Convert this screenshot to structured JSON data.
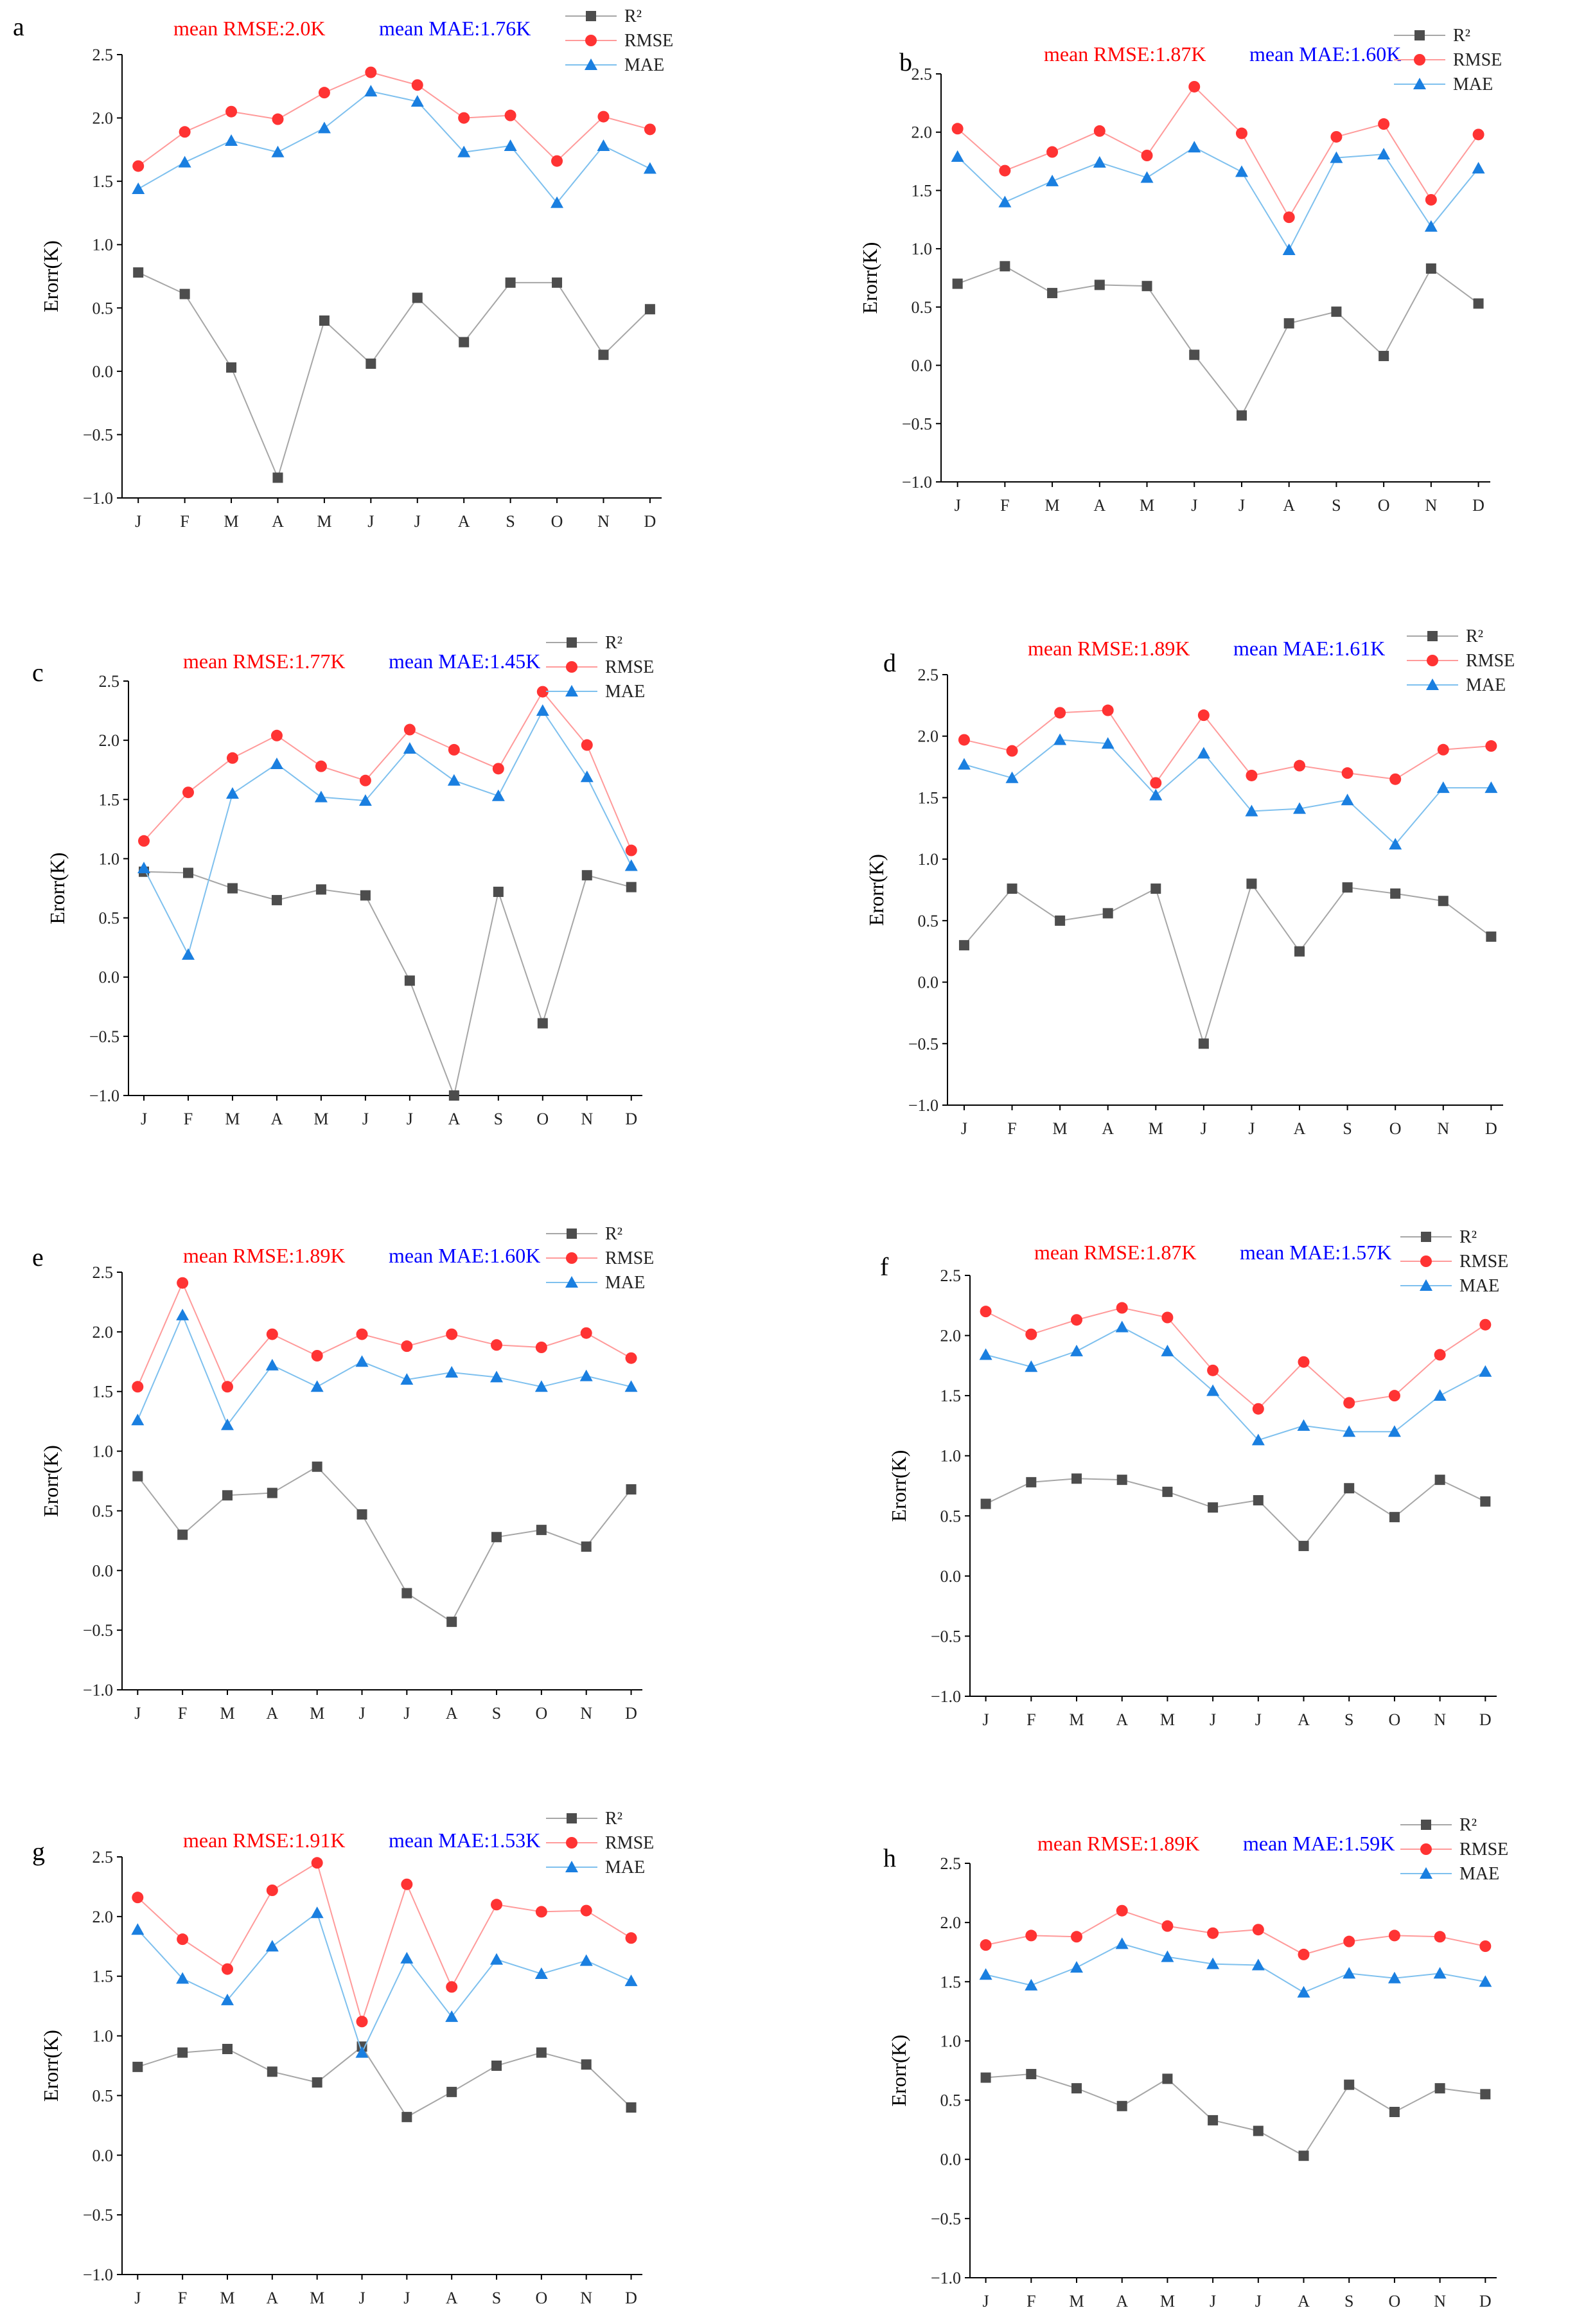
{
  "figure": {
    "colors": {
      "r2": "#4d4d4d",
      "r2_line": "#a6a6a6",
      "rmse": "#ff3333",
      "rmse_line": "#ff9a9a",
      "mae": "#1a7fe0",
      "mae_line": "#7ec0ee",
      "rmse_text": "#ff0000",
      "mae_text": "#0000ff",
      "axis": "#000000"
    }
  },
  "chart_data": [
    {
      "panel": "a",
      "type": "line",
      "summary_rmse": "mean RMSE:2.0K",
      "summary_mae": "mean MAE:1.76K",
      "ylabel": "Erorr(K)",
      "ylim": [
        -1.0,
        2.5
      ],
      "yticks": [
        "-1.0",
        "-0.5",
        "0.0",
        "0.5",
        "1.0",
        "1.5",
        "2.0",
        "2.5"
      ],
      "categories": [
        "J",
        "F",
        "M",
        "A",
        "M",
        "J",
        "J",
        "A",
        "S",
        "O",
        "N",
        "D"
      ],
      "series": [
        {
          "name": "R²",
          "key": "r2",
          "values": [
            0.78,
            0.61,
            0.03,
            -0.84,
            0.4,
            0.06,
            0.58,
            0.23,
            0.7,
            0.7,
            0.13,
            0.49
          ]
        },
        {
          "name": "RMSE",
          "key": "rmse",
          "values": [
            1.62,
            1.89,
            2.05,
            1.99,
            2.2,
            2.36,
            2.26,
            2.0,
            2.02,
            1.66,
            2.01,
            1.91
          ]
        },
        {
          "name": "MAE",
          "key": "mae",
          "values": [
            1.44,
            1.65,
            1.82,
            1.73,
            1.92,
            2.21,
            2.13,
            1.73,
            1.78,
            1.33,
            1.78,
            1.6
          ]
        }
      ]
    },
    {
      "panel": "b",
      "type": "line",
      "summary_rmse": "mean RMSE:1.87K",
      "summary_mae": "mean MAE:1.60K",
      "ylabel": "Erorr(K)",
      "ylim": [
        -1.0,
        2.5
      ],
      "yticks": [
        "-1.0",
        "-0.5",
        "0.0",
        "0.5",
        "1.0",
        "1.5",
        "2.0",
        "2.5"
      ],
      "categories": [
        "J",
        "F",
        "M",
        "A",
        "M",
        "J",
        "J",
        "A",
        "S",
        "O",
        "N",
        "D"
      ],
      "series": [
        {
          "name": "R²",
          "key": "r2",
          "values": [
            0.7,
            0.85,
            0.62,
            0.69,
            0.68,
            0.09,
            -0.43,
            0.36,
            0.46,
            0.08,
            0.83,
            0.53
          ]
        },
        {
          "name": "RMSE",
          "key": "rmse",
          "values": [
            2.03,
            1.67,
            1.83,
            2.01,
            1.8,
            2.39,
            1.99,
            1.27,
            1.96,
            2.07,
            1.42,
            1.98
          ]
        },
        {
          "name": "MAE",
          "key": "mae",
          "values": [
            1.79,
            1.4,
            1.58,
            1.74,
            1.61,
            1.87,
            1.66,
            0.99,
            1.78,
            1.81,
            1.19,
            1.69
          ]
        }
      ]
    },
    {
      "panel": "c",
      "type": "line",
      "summary_rmse": "mean RMSE:1.77K",
      "summary_mae": "mean MAE:1.45K",
      "ylabel": "Erorr(K)",
      "ylim": [
        -1.0,
        2.5
      ],
      "yticks": [
        "-1.0",
        "-0.5",
        "0.0",
        "0.5",
        "1.0",
        "1.5",
        "2.0",
        "2.5"
      ],
      "categories": [
        "J",
        "F",
        "M",
        "A",
        "M",
        "J",
        "J",
        "A",
        "S",
        "O",
        "N",
        "D"
      ],
      "series": [
        {
          "name": "R²",
          "key": "r2",
          "values": [
            0.89,
            0.88,
            0.75,
            0.65,
            0.74,
            0.69,
            -0.03,
            -1.0,
            0.72,
            -0.39,
            0.86,
            0.76
          ]
        },
        {
          "name": "RMSE",
          "key": "rmse",
          "values": [
            1.15,
            1.56,
            1.85,
            2.04,
            1.78,
            1.66,
            2.09,
            1.92,
            1.76,
            2.41,
            1.96,
            1.07
          ]
        },
        {
          "name": "MAE",
          "key": "mae",
          "values": [
            0.92,
            0.19,
            1.55,
            1.8,
            1.52,
            1.49,
            1.93,
            1.66,
            1.53,
            2.25,
            1.69,
            0.94
          ]
        }
      ]
    },
    {
      "panel": "d",
      "type": "line",
      "summary_rmse": "mean RMSE:1.89K",
      "summary_mae": "mean MAE:1.61K",
      "ylabel": "Erorr(K)",
      "ylim": [
        -1.0,
        2.5
      ],
      "yticks": [
        "-1.0",
        "-0.5",
        "0.0",
        "0.5",
        "1.0",
        "1.5",
        "2.0",
        "2.5"
      ],
      "categories": [
        "J",
        "F",
        "M",
        "A",
        "M",
        "J",
        "J",
        "A",
        "S",
        "O",
        "N",
        "D"
      ],
      "series": [
        {
          "name": "R²",
          "key": "r2",
          "values": [
            0.3,
            0.76,
            0.5,
            0.56,
            0.76,
            -0.5,
            0.8,
            0.25,
            0.77,
            0.72,
            0.66,
            0.37
          ]
        },
        {
          "name": "RMSE",
          "key": "rmse",
          "values": [
            1.97,
            1.88,
            2.19,
            2.21,
            1.62,
            2.17,
            1.68,
            1.76,
            1.7,
            1.65,
            1.89,
            1.92
          ]
        },
        {
          "name": "MAE",
          "key": "mae",
          "values": [
            1.77,
            1.66,
            1.97,
            1.94,
            1.52,
            1.86,
            1.39,
            1.41,
            1.48,
            1.12,
            1.58,
            1.58
          ]
        }
      ]
    },
    {
      "panel": "e",
      "type": "line",
      "summary_rmse": "mean RMSE:1.89K",
      "summary_mae": "mean MAE:1.60K",
      "ylabel": "Erorr(K)",
      "ylim": [
        -1.0,
        2.5
      ],
      "yticks": [
        "-1.0",
        "-0.5",
        "0.0",
        "0.5",
        "1.0",
        "1.5",
        "2.0",
        "2.5"
      ],
      "categories": [
        "J",
        "F",
        "M",
        "A",
        "M",
        "J",
        "J",
        "A",
        "S",
        "O",
        "N",
        "D"
      ],
      "series": [
        {
          "name": "R²",
          "key": "r2",
          "values": [
            0.79,
            0.3,
            0.63,
            0.65,
            0.87,
            0.47,
            -0.19,
            -0.43,
            0.28,
            0.34,
            0.2,
            0.68
          ]
        },
        {
          "name": "RMSE",
          "key": "rmse",
          "values": [
            1.54,
            2.41,
            1.54,
            1.98,
            1.8,
            1.98,
            1.88,
            1.98,
            1.89,
            1.87,
            1.99,
            1.78
          ]
        },
        {
          "name": "MAE",
          "key": "mae",
          "values": [
            1.26,
            2.14,
            1.22,
            1.72,
            1.54,
            1.75,
            1.6,
            1.66,
            1.62,
            1.54,
            1.63,
            1.54
          ]
        }
      ]
    },
    {
      "panel": "f",
      "type": "line",
      "summary_rmse": "mean RMSE:1.87K",
      "summary_mae": "mean MAE:1.57K",
      "ylabel": "Erorr(K)",
      "ylim": [
        -1.0,
        2.5
      ],
      "yticks": [
        "-1.0",
        "-0.5",
        "0.0",
        "0.5",
        "1.0",
        "1.5",
        "2.0",
        "2.5"
      ],
      "categories": [
        "J",
        "F",
        "M",
        "A",
        "M",
        "J",
        "J",
        "A",
        "S",
        "O",
        "N",
        "D"
      ],
      "series": [
        {
          "name": "R²",
          "key": "r2",
          "values": [
            0.6,
            0.78,
            0.81,
            0.8,
            0.7,
            0.57,
            0.63,
            0.25,
            0.73,
            0.49,
            0.8,
            0.62
          ]
        },
        {
          "name": "RMSE",
          "key": "rmse",
          "values": [
            2.2,
            2.01,
            2.13,
            2.23,
            2.15,
            1.71,
            1.39,
            1.78,
            1.44,
            1.5,
            1.84,
            2.09
          ]
        },
        {
          "name": "MAE",
          "key": "mae",
          "values": [
            1.84,
            1.74,
            1.87,
            2.07,
            1.87,
            1.54,
            1.13,
            1.25,
            1.2,
            1.2,
            1.5,
            1.7
          ]
        }
      ]
    },
    {
      "panel": "g",
      "type": "line",
      "summary_rmse": "mean RMSE:1.91K",
      "summary_mae": "mean MAE:1.53K",
      "ylabel": "Erorr(K)",
      "ylim": [
        -1.0,
        2.5
      ],
      "yticks": [
        "-1.0",
        "-0.5",
        "0.0",
        "0.5",
        "1.0",
        "1.5",
        "2.0",
        "2.5"
      ],
      "categories": [
        "J",
        "F",
        "M",
        "A",
        "M",
        "J",
        "J",
        "A",
        "S",
        "O",
        "N",
        "D"
      ],
      "series": [
        {
          "name": "R²",
          "key": "r2",
          "values": [
            0.74,
            0.86,
            0.89,
            0.7,
            0.61,
            0.91,
            0.32,
            0.53,
            0.75,
            0.86,
            0.76,
            0.4
          ]
        },
        {
          "name": "RMSE",
          "key": "rmse",
          "values": [
            2.16,
            1.81,
            1.56,
            2.22,
            2.45,
            1.12,
            2.27,
            1.41,
            2.1,
            2.04,
            2.05,
            1.82
          ]
        },
        {
          "name": "MAE",
          "key": "mae",
          "values": [
            1.89,
            1.48,
            1.3,
            1.75,
            2.03,
            0.86,
            1.65,
            1.16,
            1.64,
            1.52,
            1.63,
            1.46
          ]
        }
      ]
    },
    {
      "panel": "h",
      "type": "line",
      "summary_rmse": "mean RMSE:1.89K",
      "summary_mae": "mean MAE:1.59K",
      "ylabel": "Erorr(K)",
      "ylim": [
        -1.0,
        2.5
      ],
      "yticks": [
        "-1.0",
        "-0.5",
        "0.0",
        "0.5",
        "1.0",
        "1.5",
        "2.0",
        "2.5"
      ],
      "categories": [
        "J",
        "F",
        "M",
        "A",
        "M",
        "J",
        "J",
        "A",
        "S",
        "O",
        "N",
        "D"
      ],
      "series": [
        {
          "name": "R²",
          "key": "r2",
          "values": [
            0.69,
            0.72,
            0.6,
            0.45,
            0.68,
            0.33,
            0.24,
            0.03,
            0.63,
            0.4,
            0.6,
            0.55
          ]
        },
        {
          "name": "RMSE",
          "key": "rmse",
          "values": [
            1.81,
            1.89,
            1.88,
            2.1,
            1.97,
            1.91,
            1.94,
            1.73,
            1.84,
            1.89,
            1.88,
            1.8
          ]
        },
        {
          "name": "MAE",
          "key": "mae",
          "values": [
            1.56,
            1.47,
            1.62,
            1.82,
            1.71,
            1.65,
            1.64,
            1.41,
            1.57,
            1.53,
            1.57,
            1.5
          ]
        }
      ]
    }
  ]
}
